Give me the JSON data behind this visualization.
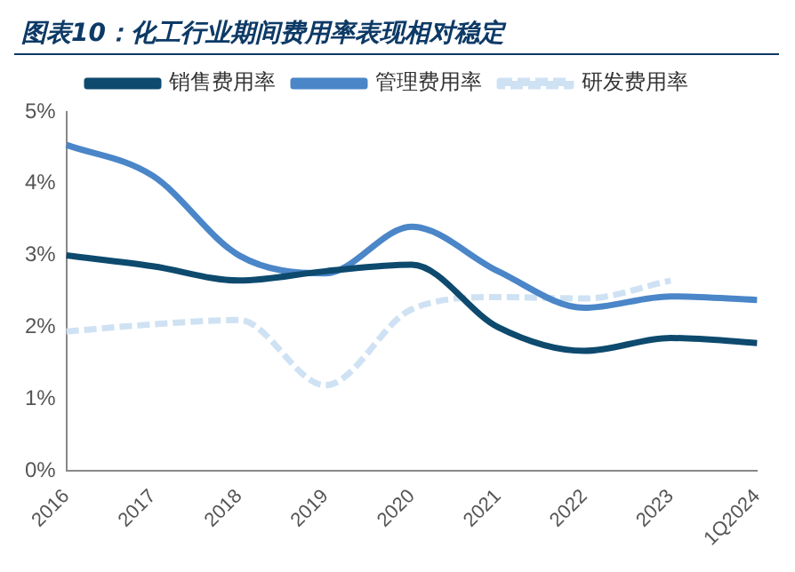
{
  "chart_data": {
    "type": "line",
    "title": "图表10：化工行业期间费用率表现相对稳定",
    "categories": [
      "2016",
      "2017",
      "2018",
      "2019",
      "2020",
      "2021",
      "2022",
      "2023",
      "1Q2024"
    ],
    "series": [
      {
        "name": "销售费用率",
        "color": "#0d4a6e",
        "values": [
          3.0,
          2.85,
          2.65,
          2.78,
          2.87,
          2.0,
          1.67,
          1.85,
          1.78
        ]
      },
      {
        "name": "管理费用率",
        "color": "#4a86c8",
        "values": [
          4.54,
          4.11,
          3.0,
          2.75,
          3.4,
          2.78,
          2.27,
          2.43,
          2.38
        ]
      },
      {
        "name": "研发费用率",
        "color": "#cfe2f3",
        "line_style": "dashed",
        "values": [
          1.94,
          2.04,
          2.1,
          1.19,
          2.25,
          2.42,
          2.4,
          2.65,
          null
        ]
      }
    ],
    "ylim": [
      0,
      5
    ],
    "yticks": [
      {
        "value": 0,
        "label": "0%"
      },
      {
        "value": 1,
        "label": "1%"
      },
      {
        "value": 2,
        "label": "2%"
      },
      {
        "value": 3,
        "label": "3%"
      },
      {
        "value": 4,
        "label": "4%"
      },
      {
        "value": 5,
        "label": "5%"
      }
    ],
    "grid": false,
    "legend": "top",
    "marker": "none",
    "line_style": "solid"
  }
}
